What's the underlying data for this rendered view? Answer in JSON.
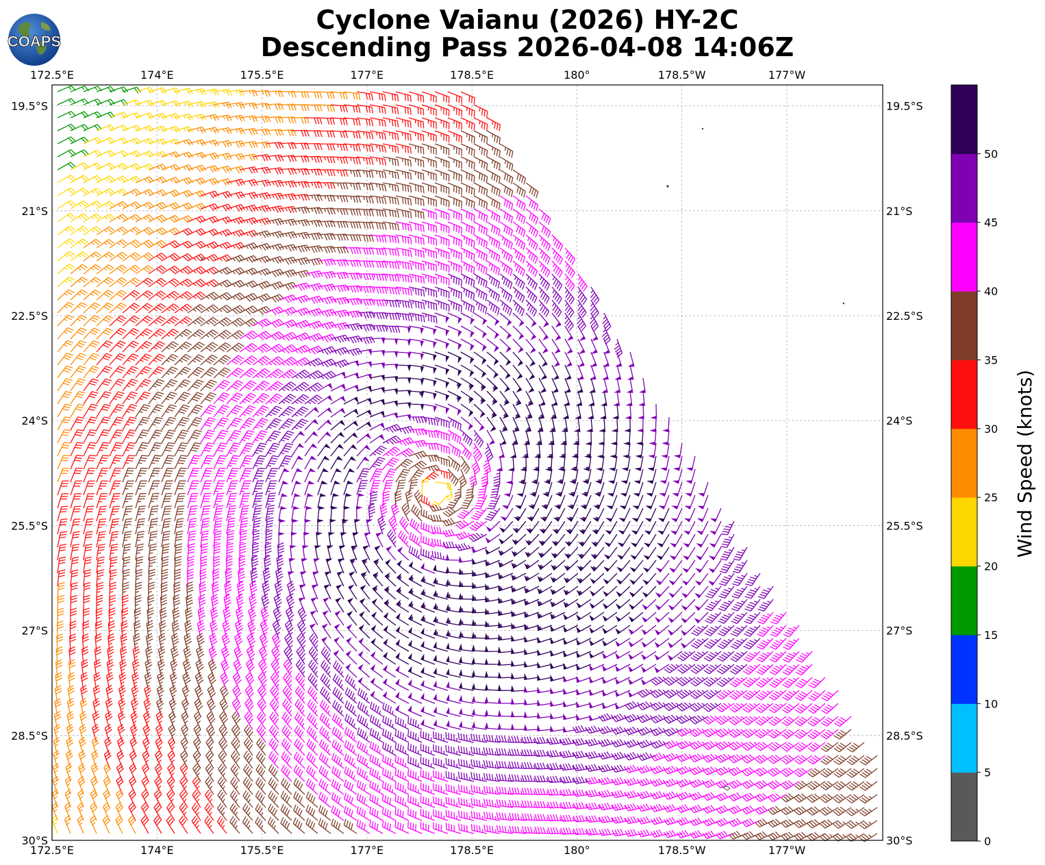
{
  "header": {
    "title_line1": "Cyclone Vaianu (2026) HY-2C",
    "title_line2": "Descending Pass 2026-04-08 14:06Z",
    "logo_text": "COAPS"
  },
  "map": {
    "lon_labels": [
      "172.5°E",
      "174°E",
      "175.5°E",
      "177°E",
      "178.5°E",
      "180°",
      "178.5°W",
      "177°W"
    ],
    "lat_labels": [
      "19.5°S",
      "21°S",
      "22.5°S",
      "24°S",
      "25.5°S",
      "27°S",
      "28.5°S",
      "30°S"
    ],
    "lon_range": [
      172.5,
      184.37
    ],
    "lat_range": [
      -30.0,
      -19.2
    ],
    "storm_center": {
      "lon": 178.0,
      "lat": -25.0
    },
    "swath_edge_note": "descending pass"
  },
  "colorbar": {
    "title": "Wind Speed (knots)",
    "tick_labels": [
      "0",
      "5",
      "10",
      "15",
      "20",
      "25",
      "30",
      "35",
      "40",
      "45",
      "50"
    ],
    "colors": [
      "#595959",
      "#00bfff",
      "#0033ff",
      "#009900",
      "#ffd700",
      "#ff8c00",
      "#ff1010",
      "#7f3c28",
      "#ff00ff",
      "#8000b4",
      "#2e0057"
    ],
    "range": [
      0,
      55
    ]
  }
}
